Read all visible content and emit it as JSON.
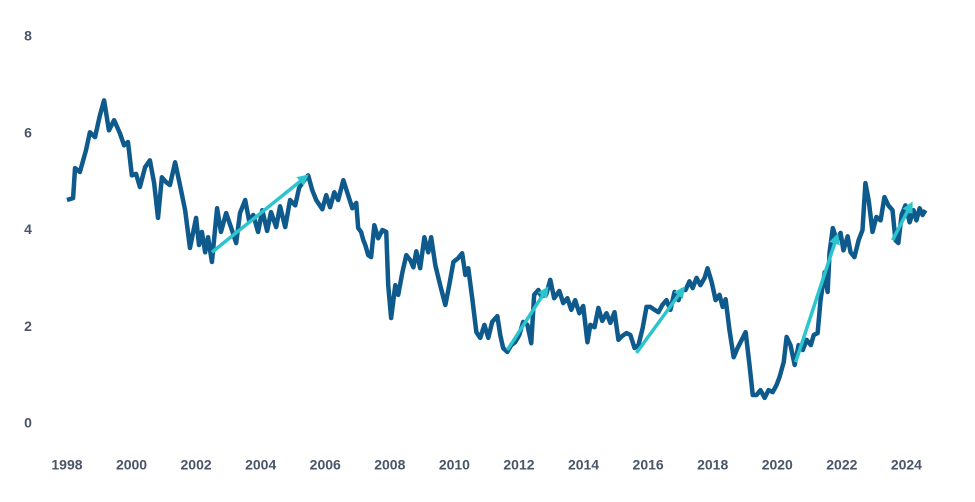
{
  "chart_data": {
    "type": "line",
    "xlim": [
      1997.8,
      2025
    ],
    "ylim": [
      0,
      8
    ],
    "xticks": [
      1998,
      2000,
      2002,
      2004,
      2006,
      2008,
      2010,
      2012,
      2014,
      2016,
      2018,
      2020,
      2022,
      2024
    ],
    "yticks": [
      0,
      2,
      4,
      6,
      8
    ],
    "grid": false,
    "series": [
      {
        "color": "#0f5a8c",
        "x": [
          1998.0,
          1998.19,
          1998.25,
          1998.4,
          1998.59,
          1998.71,
          1998.87,
          1999.02,
          1999.15,
          1999.3,
          1999.46,
          1999.64,
          1999.77,
          1999.89,
          2000.01,
          2000.14,
          2000.26,
          2000.42,
          2000.57,
          2000.7,
          2000.82,
          2000.94,
          2001.07,
          2001.19,
          2001.35,
          2001.5,
          2001.66,
          2001.81,
          2002.0,
          2002.09,
          2002.18,
          2002.28,
          2002.37,
          2002.49,
          2002.65,
          2002.77,
          2002.93,
          2003.08,
          2003.24,
          2003.36,
          2003.52,
          2003.64,
          2003.77,
          2003.92,
          2004.05,
          2004.2,
          2004.32,
          2004.48,
          2004.6,
          2004.76,
          2004.91,
          2005.07,
          2005.19,
          2005.35,
          2005.47,
          2005.6,
          2005.72,
          2005.91,
          2006.03,
          2006.15,
          2006.28,
          2006.4,
          2006.56,
          2006.68,
          2006.84,
          2006.96,
          2007.02,
          2007.11,
          2007.18,
          2007.24,
          2007.33,
          2007.42,
          2007.52,
          2007.64,
          2007.77,
          2007.89,
          2007.95,
          2008.04,
          2008.17,
          2008.26,
          2008.39,
          2008.51,
          2008.63,
          2008.73,
          2008.82,
          2008.94,
          2009.07,
          2009.19,
          2009.28,
          2009.41,
          2009.56,
          2009.72,
          2009.84,
          2009.97,
          2010.12,
          2010.24,
          2010.34,
          2010.43,
          2010.56,
          2010.68,
          2010.8,
          2010.93,
          2011.05,
          2011.17,
          2011.33,
          2011.42,
          2011.51,
          2011.64,
          2011.76,
          2011.88,
          2012.01,
          2012.13,
          2012.26,
          2012.38,
          2012.47,
          2012.6,
          2012.69,
          2012.84,
          2012.97,
          2013.09,
          2013.25,
          2013.37,
          2013.5,
          2013.62,
          2013.74,
          2013.87,
          2013.99,
          2014.12,
          2014.21,
          2014.34,
          2014.46,
          2014.58,
          2014.71,
          2014.83,
          2014.96,
          2015.08,
          2015.2,
          2015.33,
          2015.45,
          2015.58,
          2015.7,
          2015.83,
          2015.95,
          2016.07,
          2016.2,
          2016.32,
          2016.44,
          2016.57,
          2016.69,
          2016.82,
          2016.94,
          2017.06,
          2017.16,
          2017.28,
          2017.38,
          2017.5,
          2017.62,
          2017.75,
          2017.84,
          2017.97,
          2018.09,
          2018.21,
          2018.31,
          2018.4,
          2018.52,
          2018.65,
          2018.77,
          2018.9,
          2019.02,
          2019.14,
          2019.24,
          2019.36,
          2019.48,
          2019.61,
          2019.73,
          2019.86,
          2019.98,
          2020.07,
          2020.2,
          2020.29,
          2020.41,
          2020.54,
          2020.66,
          2020.79,
          2020.91,
          2021.04,
          2021.13,
          2021.25,
          2021.34,
          2021.47,
          2021.56,
          2021.62,
          2021.72,
          2021.84,
          2021.96,
          2022.05,
          2022.18,
          2022.27,
          2022.39,
          2022.52,
          2022.64,
          2022.73,
          2022.83,
          2022.95,
          2023.07,
          2023.2,
          2023.32,
          2023.44,
          2023.57,
          2023.66,
          2023.75,
          2023.85,
          2023.97,
          2024.1,
          2024.22,
          2024.31,
          2024.41,
          2024.5,
          2024.59
        ],
        "values": [
          4.63,
          4.67,
          5.29,
          5.21,
          5.66,
          6.03,
          5.93,
          6.38,
          6.69,
          6.07,
          6.28,
          6.01,
          5.76,
          5.83,
          5.14,
          5.17,
          4.9,
          5.31,
          5.45,
          4.98,
          4.26,
          5.1,
          5.0,
          4.94,
          5.41,
          4.94,
          4.42,
          3.64,
          4.26,
          3.7,
          3.97,
          3.55,
          3.86,
          3.35,
          4.46,
          3.97,
          4.36,
          4.07,
          3.74,
          4.36,
          4.63,
          4.21,
          4.32,
          3.97,
          4.42,
          3.99,
          4.38,
          4.07,
          4.5,
          4.07,
          4.63,
          4.52,
          4.88,
          5.04,
          5.14,
          4.83,
          4.63,
          4.44,
          4.73,
          4.48,
          4.79,
          4.63,
          5.04,
          4.79,
          4.46,
          4.57,
          4.05,
          3.97,
          3.8,
          3.7,
          3.49,
          3.45,
          4.11,
          3.84,
          4.01,
          3.97,
          2.87,
          2.19,
          2.87,
          2.67,
          3.14,
          3.49,
          3.39,
          3.24,
          3.57,
          3.22,
          3.86,
          3.55,
          3.86,
          3.28,
          2.87,
          2.46,
          2.87,
          3.35,
          3.43,
          3.53,
          3.08,
          3.22,
          2.56,
          1.9,
          1.78,
          2.05,
          1.78,
          2.11,
          2.23,
          1.84,
          1.57,
          1.49,
          1.63,
          1.69,
          1.84,
          2.11,
          2.05,
          1.67,
          2.67,
          2.77,
          2.64,
          2.67,
          2.98,
          2.6,
          2.75,
          2.5,
          2.6,
          2.36,
          2.56,
          2.29,
          2.44,
          1.69,
          2.05,
          2.0,
          2.4,
          2.13,
          2.29,
          2.09,
          2.31,
          1.74,
          1.82,
          1.88,
          1.84,
          1.57,
          1.63,
          1.98,
          2.42,
          2.42,
          2.36,
          2.31,
          2.46,
          2.56,
          2.36,
          2.73,
          2.56,
          2.77,
          2.77,
          2.95,
          2.81,
          3.02,
          2.87,
          3.02,
          3.22,
          2.93,
          2.56,
          2.67,
          2.42,
          2.58,
          1.94,
          1.38,
          1.57,
          1.74,
          1.9,
          1.22,
          0.6,
          0.6,
          0.7,
          0.54,
          0.7,
          0.66,
          0.81,
          0.97,
          1.28,
          1.8,
          1.63,
          1.22,
          1.63,
          1.53,
          1.74,
          1.63,
          1.84,
          1.88,
          2.56,
          3.14,
          2.73,
          3.55,
          4.05,
          3.8,
          3.95,
          3.59,
          3.88,
          3.55,
          3.45,
          3.8,
          4.01,
          4.98,
          4.63,
          3.97,
          4.28,
          4.21,
          4.69,
          4.52,
          4.42,
          3.8,
          3.74,
          4.32,
          4.52,
          4.17,
          4.42,
          4.21,
          4.46,
          4.32,
          4.42
        ]
      }
    ],
    "arrows": {
      "color": "#2cc5cd",
      "items": [
        {
          "x": [
            2002.49,
            2005.38
          ],
          "y": [
            3.55,
            5.1
          ]
        },
        {
          "x": [
            2011.64,
            2012.84
          ],
          "y": [
            1.53,
            2.77
          ]
        },
        {
          "x": [
            2015.64,
            2017.06
          ],
          "y": [
            1.47,
            2.77
          ]
        },
        {
          "x": [
            2020.57,
            2021.84
          ],
          "y": [
            1.28,
            3.86
          ]
        },
        {
          "x": [
            2023.57,
            2024.13
          ],
          "y": [
            3.8,
            4.52
          ]
        }
      ]
    }
  }
}
